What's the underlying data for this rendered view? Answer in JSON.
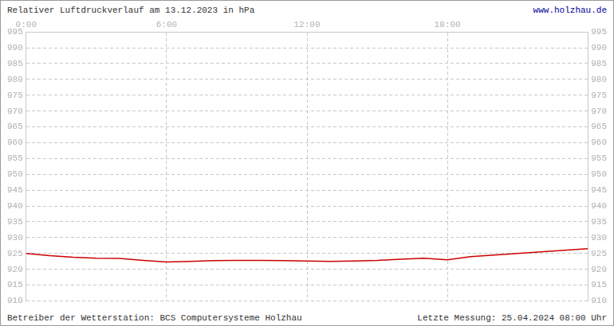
{
  "chart_data": {
    "type": "line",
    "title": "Relativer Luftdruckverlauf am 13.12.2023 in hPa",
    "source_url": "www.holzhau.de",
    "footer_left": "Betreiber der Wetterstation: BCS Computersysteme Holzhau",
    "footer_right": "Letzte Messung: 25.04.2024 08:00 Uhr",
    "x": [
      0,
      1,
      2,
      3,
      4,
      5,
      6,
      7,
      8,
      9,
      10,
      11,
      12,
      13,
      14,
      15,
      16,
      17,
      18,
      19,
      20,
      21,
      22,
      23,
      24
    ],
    "values": [
      925.0,
      924.3,
      923.8,
      923.5,
      923.4,
      922.8,
      922.3,
      922.5,
      922.7,
      922.8,
      922.8,
      922.7,
      922.6,
      922.5,
      922.6,
      922.8,
      923.2,
      923.5,
      923.0,
      924.0,
      924.5,
      925.0,
      925.5,
      926.0,
      926.5
    ],
    "color": "#cc0000",
    "xlim": [
      0,
      24
    ],
    "xticks": [
      {
        "value": 0,
        "label": "0:00"
      },
      {
        "value": 6,
        "label": "6:00"
      },
      {
        "value": 12,
        "label": "12:00"
      },
      {
        "value": 18,
        "label": "18:00"
      }
    ],
    "ylim": [
      910,
      995
    ],
    "yticks": [
      910,
      915,
      920,
      925,
      930,
      935,
      940,
      945,
      950,
      955,
      960,
      965,
      970,
      975,
      980,
      985,
      990,
      995
    ],
    "grid": true
  }
}
